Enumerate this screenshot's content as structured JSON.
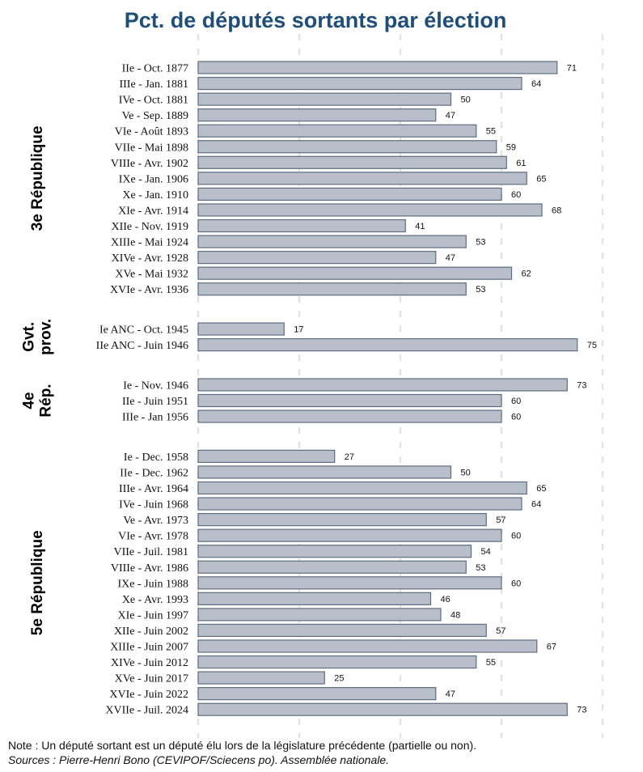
{
  "chart_data": {
    "type": "bar",
    "orientation": "horizontal",
    "title": "Pct. de députés sortants par élection",
    "xlim": [
      0,
      80
    ],
    "colors": {
      "bar_fill": "#b8bfca",
      "bar_stroke": "#5f6d80",
      "title": "#1f4e79",
      "grid": "#e3e3e3"
    },
    "groups": [
      {
        "label_lines": [
          "3e République"
        ],
        "categories": [
          "IIe - Oct. 1877",
          "IIIe - Jan. 1881",
          "IVe - Oct. 1881",
          "Ve - Sep. 1889",
          "VIe - Août 1893",
          "VIIe - Mai 1898",
          "VIIIe - Avr. 1902",
          "IXe - Jan. 1906",
          "Xe - Jan. 1910",
          "XIe - Avr. 1914",
          "XIIe - Nov. 1919",
          "XIIIe - Mai 1924",
          "XIVe - Avr. 1928",
          "XVe - Mai 1932",
          "XVIe - Avr. 1936"
        ],
        "values": [
          71,
          64,
          50,
          47,
          55,
          59,
          61,
          65,
          60,
          68,
          41,
          53,
          47,
          62,
          53
        ]
      },
      {
        "label_lines": [
          "Gvt.",
          "prov."
        ],
        "categories": [
          "Ie ANC - Oct. 1945",
          "IIe ANC - Juin 1946"
        ],
        "values": [
          17,
          75
        ]
      },
      {
        "label_lines": [
          "4e",
          "Rép."
        ],
        "categories": [
          "Ie - Nov. 1946",
          "IIe - Juin 1951",
          "IIIe - Jan 1956"
        ],
        "values": [
          73,
          60,
          60
        ]
      },
      {
        "label_lines": [
          "5e République"
        ],
        "categories": [
          "Ie - Dec. 1958",
          "IIe - Dec. 1962",
          "IIIe - Avr. 1964",
          "IVe - Juin 1968",
          "Ve - Avr. 1973",
          "VIe - Avr. 1978",
          "VIIe - Juil. 1981",
          "VIIIe - Avr. 1986",
          "IXe - Juin 1988",
          "Xe - Avr. 1993",
          "XIe - Juin 1997",
          "XIIe - Juin 2002",
          "XIIIe - Juin 2007",
          "XIVe - Juin 2012",
          "XVe - Juin 2017",
          "XVIe - Juin 2022",
          "XVIIe - Juil. 2024"
        ],
        "values": [
          27,
          50,
          65,
          64,
          57,
          60,
          54,
          53,
          60,
          46,
          48,
          57,
          67,
          55,
          25,
          47,
          73
        ]
      }
    ]
  },
  "footer": {
    "note": "Note : Un député sortant est un député élu lors de la législature précédente (partielle ou non).",
    "source": "Sources : Pierre-Henri Bono (CEVIPOF/Sciecens po). Assemblée nationale."
  }
}
